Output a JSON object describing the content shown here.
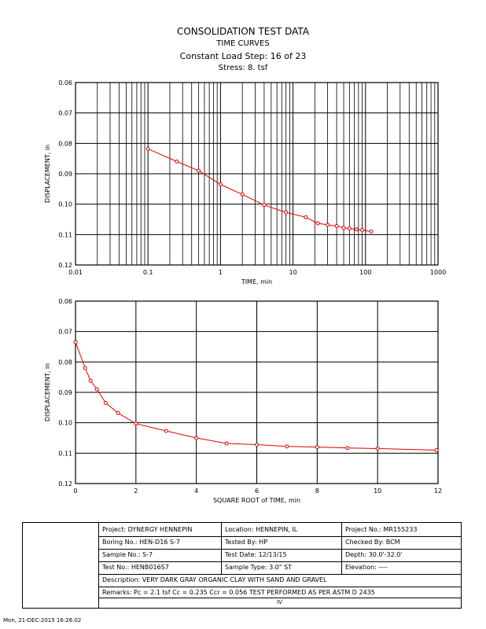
{
  "header": {
    "title": "CONSOLIDATION TEST DATA",
    "subtitle": "TIME CURVES",
    "step": "Constant Load Step: 16 of 23",
    "stress": "Stress: 8. tsf"
  },
  "chart_data": [
    {
      "type": "line",
      "xscale": "log",
      "xlabel": "TIME, min",
      "ylabel": "DISPLACEMENT, in",
      "xlim": [
        0.01,
        1000
      ],
      "ylim": [
        0.06,
        0.12
      ],
      "y_inverted": true,
      "grid": true,
      "xticks": [
        "0.01",
        "0.1",
        "1",
        "10",
        "100",
        "1000"
      ],
      "yticks": [
        "0.06",
        "0.07",
        "0.08",
        "0.09",
        "0.10",
        "0.11",
        "0.12"
      ],
      "series": [
        {
          "color": "#dd0000",
          "x": [
            0.1,
            0.25,
            0.5,
            1,
            2,
            4,
            8,
            15,
            22,
            30,
            40,
            50,
            60,
            75,
            90,
            120
          ],
          "y": [
            0.0818,
            0.086,
            0.089,
            0.0935,
            0.0968,
            0.1003,
            0.1027,
            0.1043,
            0.1063,
            0.1068,
            0.1072,
            0.1078,
            0.108,
            0.1083,
            0.1085,
            0.109
          ]
        }
      ]
    },
    {
      "type": "line",
      "xlabel": "SQUARE ROOT of TIME, min",
      "ylabel": "DISPLACEMENT, in",
      "xlim": [
        0,
        12
      ],
      "ylim": [
        0.06,
        0.12
      ],
      "y_inverted": true,
      "grid": true,
      "xticks": [
        "0",
        "2",
        "4",
        "6",
        "8",
        "10",
        "12"
      ],
      "yticks": [
        "0.06",
        "0.07",
        "0.08",
        "0.09",
        "0.10",
        "0.11",
        "0.12"
      ],
      "series": [
        {
          "color": "#dd0000",
          "x": [
            0,
            0.32,
            0.5,
            0.71,
            1.0,
            1.41,
            2.0,
            3.0,
            4.0,
            5.0,
            6.0,
            7.0,
            8.0,
            9.0,
            10.0,
            11.95
          ],
          "y": [
            0.0735,
            0.082,
            0.0862,
            0.089,
            0.0935,
            0.0968,
            0.1003,
            0.1027,
            0.105,
            0.1068,
            0.1072,
            0.1078,
            0.108,
            0.1083,
            0.1085,
            0.109
          ]
        }
      ]
    }
  ],
  "info": {
    "project": "Project: DYNERGY HENNEPIN",
    "location": "Location: HENNEPIN, IL",
    "project_no": "Project No.: MR155233",
    "boring_no": "Boring No.: HEN-D16 S-7",
    "tested_by": "Tested By: HP",
    "checked_by": "Checked By: BCM",
    "sample_no": "Sample No.: S-7",
    "test_date": "Test Date: 12/13/15",
    "depth": "Depth: 30.0'-32.0'",
    "test_no": "Test No.: HENB016S7",
    "sample_type": "Sample Type: 3.0\" ST",
    "elevation": "Elevation: ----",
    "description": "Description: VERY DARK GRAY ORGANIC CLAY WITH SAND AND GRAVEL",
    "remarks": "Remarks: Pc = 2.1 tsf Cc = 0.235 Ccr = 0.056 TEST PERFORMED AS PER ASTM D 2435",
    "figure_mark": "IV"
  },
  "footer": {
    "timestamp": "Mon, 21-DEC-2015 16:26:02"
  }
}
